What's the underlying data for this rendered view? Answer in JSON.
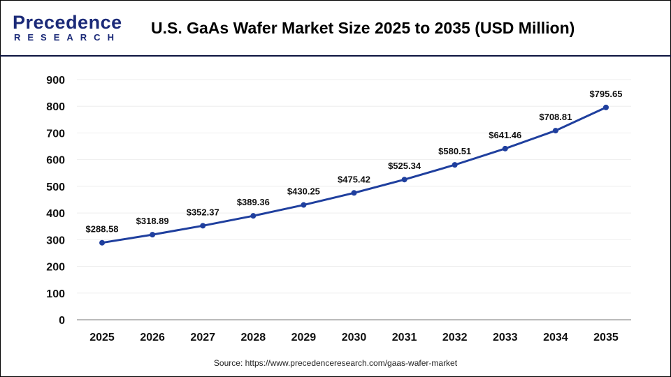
{
  "header": {
    "logo_main": "Precedence",
    "logo_sub": "RESEARCH",
    "title": "U.S. GaAs Wafer Market Size 2025 to 2035 (USD Million)"
  },
  "source": "Source: https://www.precedenceresearch.com/gaas-wafer-market",
  "chart_data": {
    "type": "line",
    "title": "U.S. GaAs Wafer Market Size 2025 to 2035 (USD Million)",
    "categories": [
      "2025",
      "2026",
      "2027",
      "2028",
      "2029",
      "2030",
      "2031",
      "2032",
      "2033",
      "2034",
      "2035"
    ],
    "series": [
      {
        "values": [
          288.58,
          318.89,
          352.37,
          389.36,
          430.25,
          475.42,
          525.34,
          580.51,
          641.46,
          708.81,
          795.65
        ]
      }
    ],
    "data_labels": [
      "$288.58",
      "$318.89",
      "$352.37",
      "$389.36",
      "$430.25",
      "$475.42",
      "$525.34",
      "$580.51",
      "$641.46",
      "$708.81",
      "$795.65"
    ],
    "yticks": [
      "0",
      "100",
      "200",
      "300",
      "400",
      "500",
      "600",
      "700",
      "800",
      "900"
    ],
    "ylim": [
      0,
      900
    ],
    "grid": true,
    "line_color": "#1f3f9e"
  }
}
